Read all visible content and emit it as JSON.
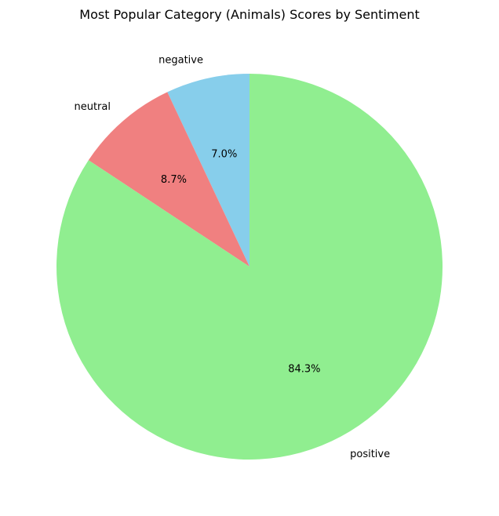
{
  "chart_data": {
    "type": "pie",
    "title": "Most Popular Category (Animals) Scores by Sentiment",
    "start_angle_deg": 90,
    "direction": "counterclockwise",
    "slices": [
      {
        "label": "negative",
        "value": 7.0,
        "pct_label": "7.0%",
        "color": "#87CEEB"
      },
      {
        "label": "neutral",
        "value": 8.7,
        "pct_label": "8.7%",
        "color": "#F08080"
      },
      {
        "label": "positive",
        "value": 84.3,
        "pct_label": "84.3%",
        "color": "#90EE90"
      }
    ]
  }
}
